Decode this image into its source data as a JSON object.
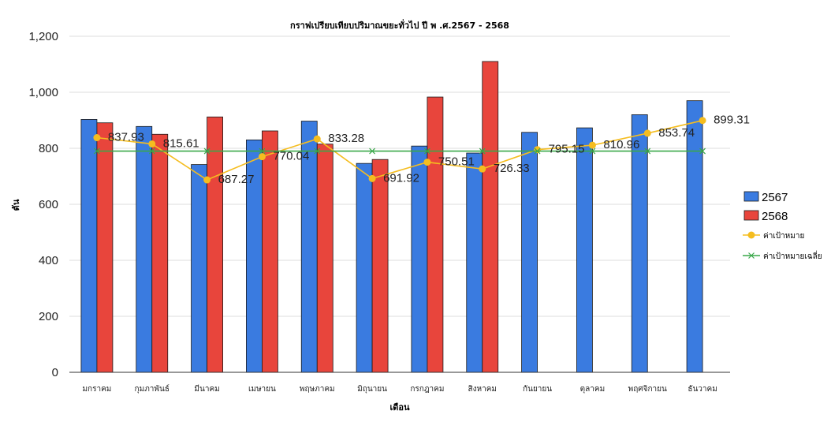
{
  "chart_data": {
    "type": "bar",
    "title": "กราฟเปรียบเทียบปริมาณขยะทั่วไป ปี พ   .ศ.2567 - 2568",
    "xlabel": "เดือน",
    "ylabel": "ตัน",
    "ylim": [
      0,
      1200
    ],
    "yticks": [
      "0",
      "200",
      "400",
      "600",
      "800",
      "1,000",
      "1,200"
    ],
    "categories": [
      "มกราคม",
      "กุมภาพันธ์",
      "มีนาคม",
      "เมษายน",
      "พฤษภาคม",
      "มิถุนายน",
      "กรกฎาคม",
      "สิงหาคม",
      "กันยายน",
      "ตุลาคม",
      "พฤศจิกายน",
      "ธันวาคม"
    ],
    "grid": true,
    "legend_position": "right",
    "series": [
      {
        "name": "2567",
        "type": "bar",
        "color": "#3a7be0",
        "values": [
          903,
          878,
          742,
          830,
          897,
          746,
          808,
          783,
          857,
          873,
          920,
          970
        ]
      },
      {
        "name": "2568",
        "type": "bar",
        "color": "#e8453c",
        "values": [
          891,
          850,
          912,
          862,
          815,
          760,
          983,
          1110,
          null,
          null,
          null,
          null
        ]
      },
      {
        "name": "ค่าเป้าหมาย",
        "type": "line",
        "color": "#f5bd1f",
        "values": [
          837.93,
          815.61,
          687.27,
          770.04,
          833.28,
          691.92,
          750.51,
          726.33,
          795.15,
          810.96,
          853.74,
          899.31
        ],
        "labels": [
          "837.93",
          "815.61",
          "687.27",
          "770.04",
          "833.28",
          "691.92",
          "750.51",
          "726.33",
          "795.15",
          "810.96",
          "853.74",
          "899.31"
        ]
      },
      {
        "name": "ค่าเป้าหมายเฉลี่ย",
        "type": "line",
        "color": "#3aa84a",
        "values": [
          790,
          790,
          790,
          790,
          790,
          790,
          790,
          790,
          790,
          790,
          790,
          790
        ]
      }
    ]
  }
}
